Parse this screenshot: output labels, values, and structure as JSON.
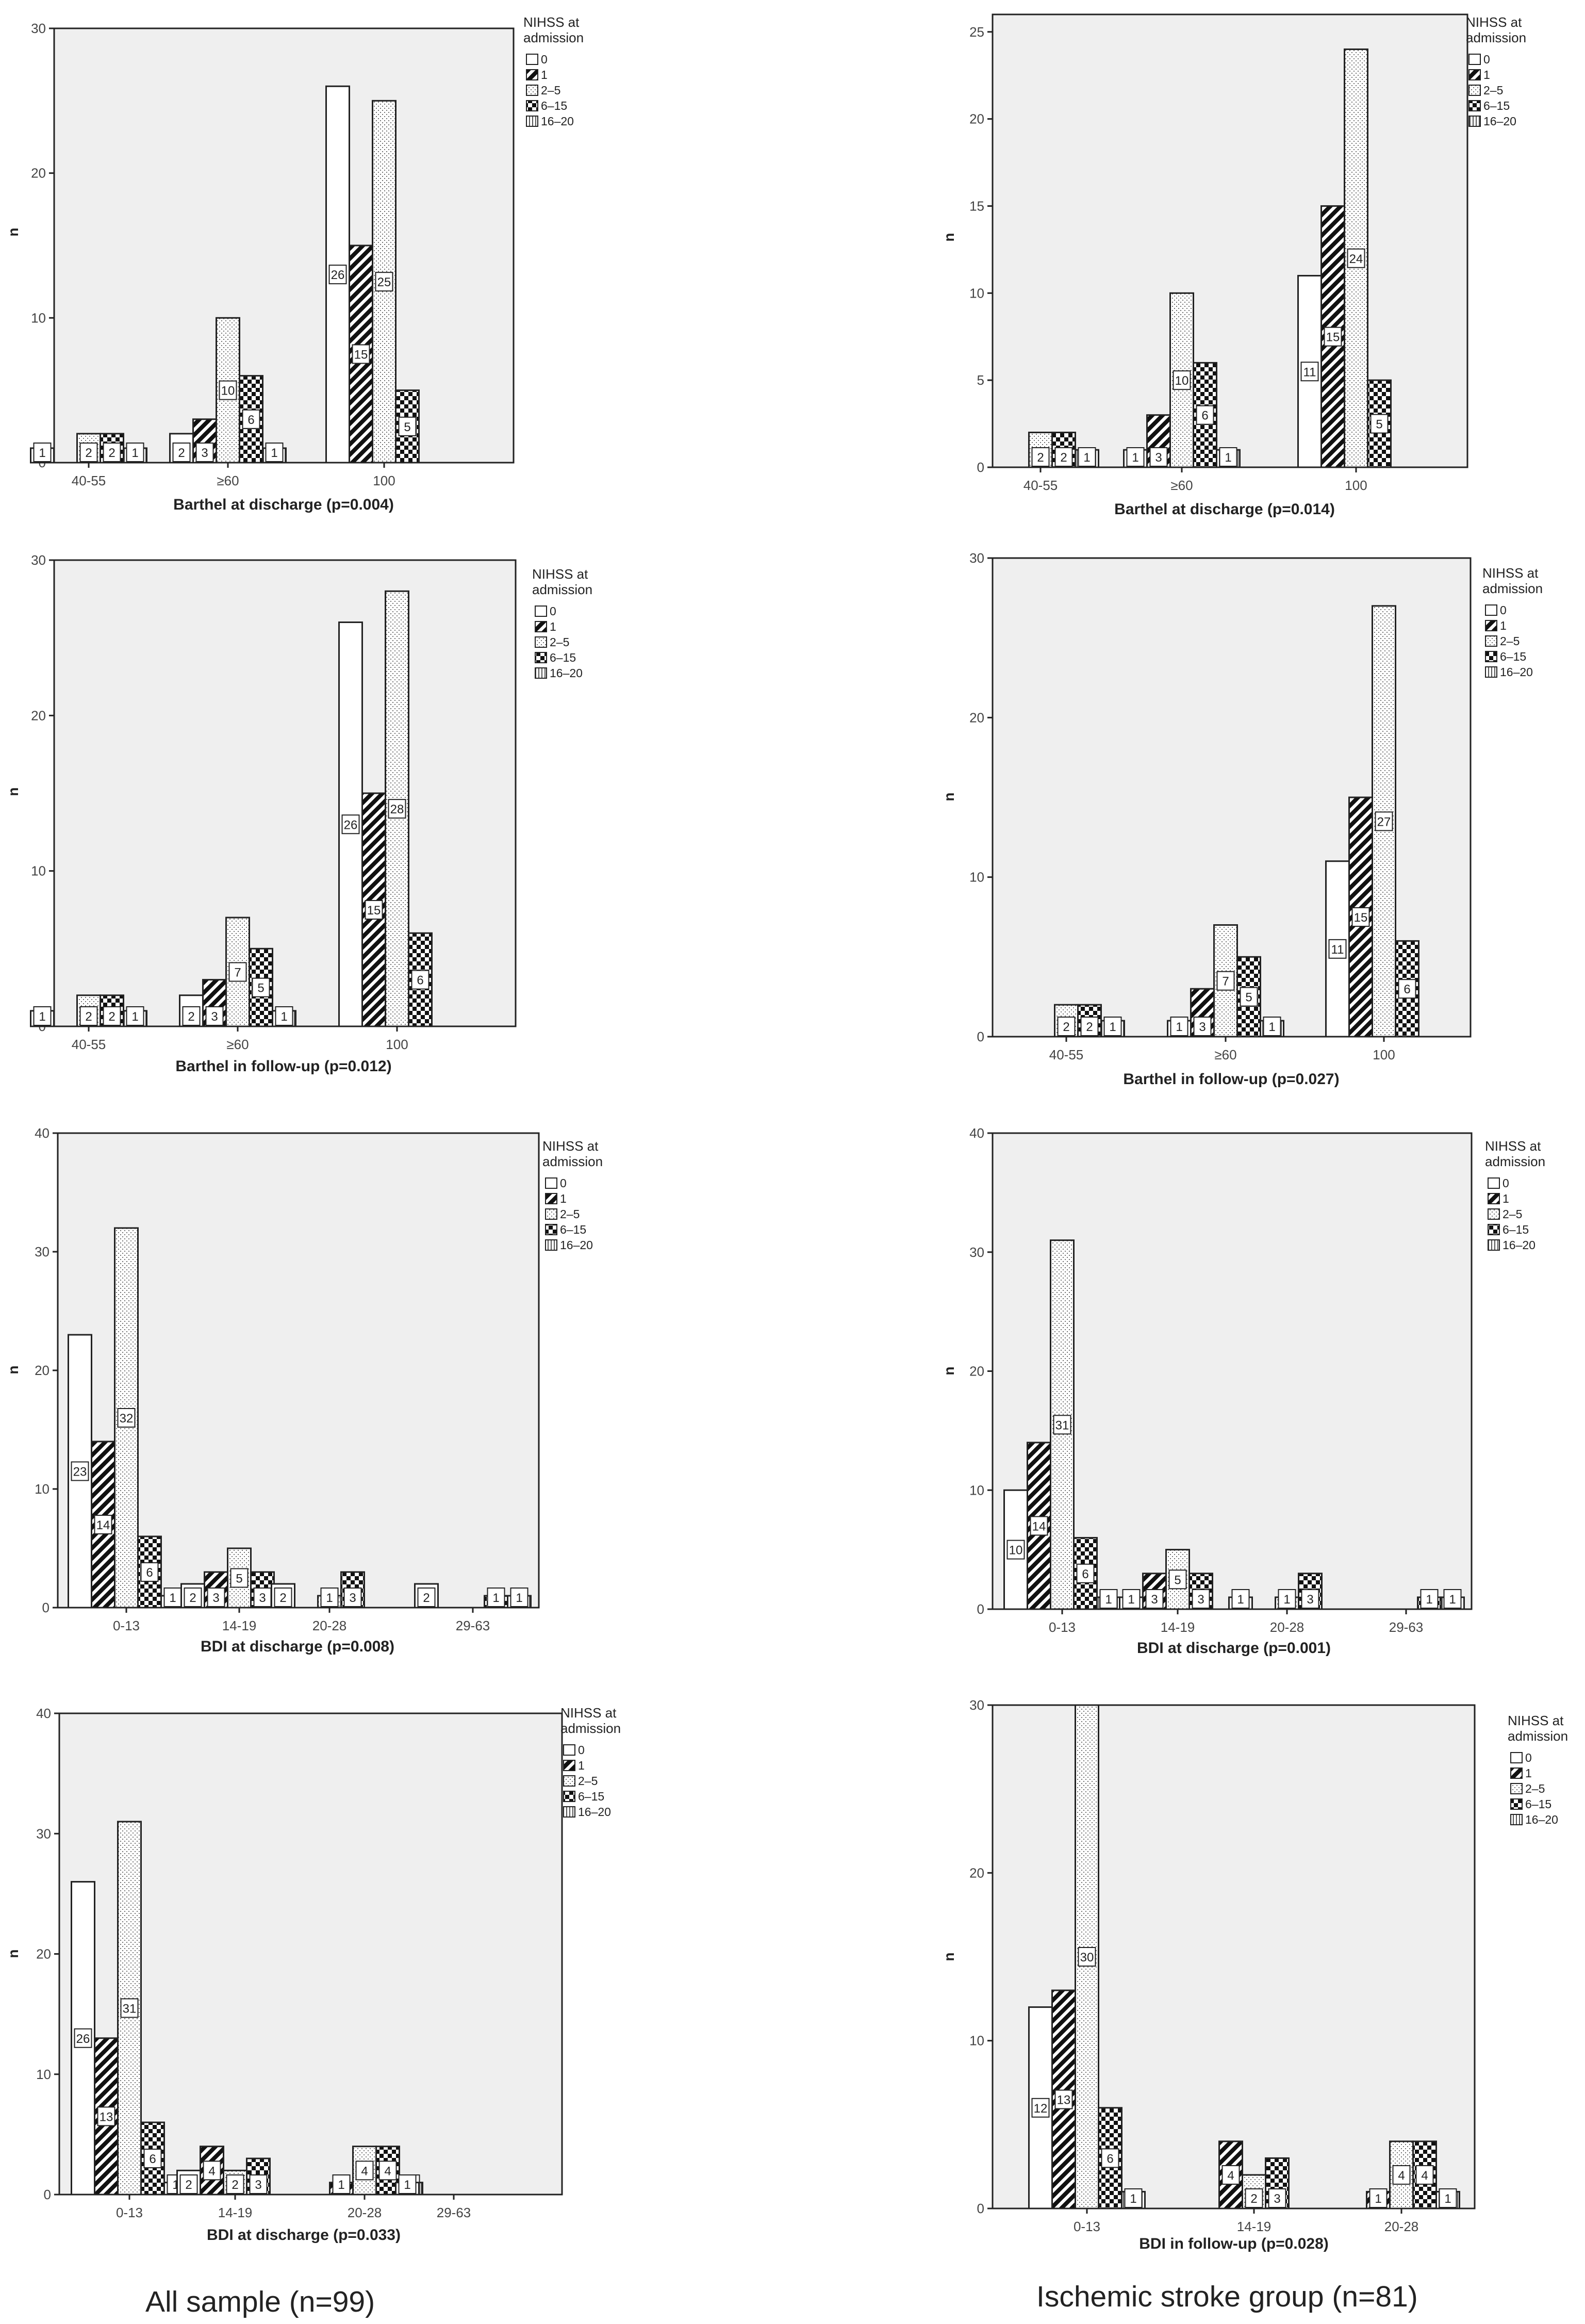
{
  "colors": {
    "plot_bg": "#efefef",
    "stroke": "#222222",
    "axis_text": "#444444"
  },
  "legend": {
    "title": "NIHSS at admission",
    "entries": [
      {
        "label": "0",
        "pattern": "solid-white"
      },
      {
        "label": "1",
        "pattern": "diagonal-black"
      },
      {
        "label": "2-5",
        "pattern": "dots"
      },
      {
        "label": "6-15",
        "pattern": "checker"
      },
      {
        "label": "16-20",
        "pattern": "vertical-lines"
      }
    ]
  },
  "captions": {
    "left": "All sample (n=99)",
    "right": "Ischemic stroke group (n=81)"
  },
  "chart_data": [
    {
      "id": "a1",
      "type": "bar",
      "title": "Barthel at discharge (p=0.004)",
      "xlabel": "Barthel at discharge (p=0.004)",
      "ylabel": "n",
      "ylim": [
        0,
        30
      ],
      "yticks": [
        0,
        10,
        20,
        30
      ],
      "categories": [
        "40-55",
        "≥60",
        "100"
      ],
      "series": [
        {
          "name": "0",
          "values": [
            1,
            2,
            26
          ]
        },
        {
          "name": "1",
          "values": [
            null,
            3,
            15
          ]
        },
        {
          "name": "2-5",
          "values": [
            2,
            10,
            25
          ]
        },
        {
          "name": "6-15",
          "values": [
            2,
            6,
            5
          ]
        },
        {
          "name": "16-20",
          "values": [
            1,
            1,
            null
          ]
        }
      ]
    },
    {
      "id": "b1",
      "type": "bar",
      "title": "Barthel at discharge (p=0.014)",
      "xlabel": "Barthel at discharge (p=0.014)",
      "ylabel": "n",
      "ylim": [
        0,
        26
      ],
      "yticks": [
        0,
        5,
        10,
        15,
        20,
        25
      ],
      "categories": [
        "40-55",
        "≥60",
        "100"
      ],
      "series": [
        {
          "name": "0",
          "values": [
            null,
            1,
            11
          ]
        },
        {
          "name": "1",
          "values": [
            null,
            3,
            15
          ]
        },
        {
          "name": "2-5",
          "values": [
            2,
            10,
            24
          ]
        },
        {
          "name": "6-15",
          "values": [
            2,
            6,
            5
          ]
        },
        {
          "name": "16-20",
          "values": [
            1,
            1,
            null
          ]
        }
      ]
    },
    {
      "id": "a2",
      "type": "bar",
      "title": "Barthel in follow-up (p=0.012)",
      "xlabel": "Barthel in follow-up (p=0.012)",
      "ylabel": "n",
      "ylim": [
        0,
        30
      ],
      "yticks": [
        0,
        10,
        20,
        30
      ],
      "categories": [
        "40-55",
        "≥60",
        "100"
      ],
      "series": [
        {
          "name": "0",
          "values": [
            1,
            2,
            26
          ]
        },
        {
          "name": "1",
          "values": [
            null,
            3,
            15
          ]
        },
        {
          "name": "2-5",
          "values": [
            2,
            7,
            28
          ]
        },
        {
          "name": "6-15",
          "values": [
            2,
            5,
            6
          ]
        },
        {
          "name": "16-20",
          "values": [
            1,
            1,
            null
          ]
        }
      ]
    },
    {
      "id": "b2",
      "type": "bar",
      "title": "Barthel in follow-up (p=0.027)",
      "xlabel": "Barthel in follow-up (p=0.027)",
      "ylabel": "n",
      "ylim": [
        0,
        30
      ],
      "yticks": [
        0,
        10,
        20,
        30
      ],
      "categories": [
        "40-55",
        "≥60",
        "100"
      ],
      "series": [
        {
          "name": "0",
          "values": [
            null,
            1,
            11
          ]
        },
        {
          "name": "1",
          "values": [
            null,
            3,
            15
          ]
        },
        {
          "name": "2-5",
          "values": [
            2,
            7,
            27
          ]
        },
        {
          "name": "6-15",
          "values": [
            2,
            5,
            6
          ]
        },
        {
          "name": "16-20",
          "values": [
            1,
            1,
            null
          ]
        }
      ]
    },
    {
      "id": "a3",
      "type": "bar",
      "title": "BDI at discharge (p=0.008)",
      "xlabel": "BDI at discharge (p=0.008)",
      "ylabel": "n",
      "ylim": [
        0,
        40
      ],
      "yticks": [
        0,
        10,
        20,
        30,
        40
      ],
      "categories": [
        "0-13",
        "14-19",
        "20-28",
        "29-63"
      ],
      "series": [
        {
          "name": "0",
          "values": [
            23,
            2,
            2,
            2
          ]
        },
        {
          "name": "1",
          "values": [
            14,
            3,
            null,
            null
          ]
        },
        {
          "name": "2-5",
          "values": [
            32,
            5,
            1,
            null
          ]
        },
        {
          "name": "6-15",
          "values": [
            6,
            3,
            3,
            1
          ]
        },
        {
          "name": "16-20",
          "values": [
            1,
            null,
            null,
            1
          ]
        }
      ]
    },
    {
      "id": "b3",
      "type": "bar",
      "title": "BDI at discharge (p=0.001)",
      "xlabel": "BDI at discharge (p=0.001)",
      "ylabel": "n",
      "ylim": [
        0,
        40
      ],
      "yticks": [
        0,
        10,
        20,
        30,
        40
      ],
      "categories": [
        "0-13",
        "14-19",
        "20-28",
        "29-63"
      ],
      "series": [
        {
          "name": "0",
          "values": [
            10,
            1,
            1,
            null
          ]
        },
        {
          "name": "1",
          "values": [
            14,
            3,
            null,
            null
          ]
        },
        {
          "name": "2-5",
          "values": [
            31,
            5,
            1,
            null
          ]
        },
        {
          "name": "6-15",
          "values": [
            6,
            3,
            3,
            1
          ]
        },
        {
          "name": "16-20",
          "values": [
            1,
            null,
            null,
            1
          ]
        }
      ]
    },
    {
      "id": "a4",
      "type": "bar",
      "title": "BDI at discharge (p=0.033)",
      "xlabel": "BDI at discharge (p=0.033)",
      "ylabel": "n",
      "ylim": [
        0,
        40
      ],
      "yticks": [
        0,
        10,
        20,
        30,
        40
      ],
      "categories": [
        "0-13",
        "14-19",
        "20-28",
        "29-63"
      ],
      "series": [
        {
          "name": "0",
          "values": [
            26,
            2,
            null,
            1
          ]
        },
        {
          "name": "1",
          "values": [
            13,
            4,
            1,
            null
          ]
        },
        {
          "name": "2-5",
          "values": [
            31,
            2,
            4,
            null
          ]
        },
        {
          "name": "6-15",
          "values": [
            6,
            3,
            4,
            null
          ]
        },
        {
          "name": "16-20",
          "values": [
            1,
            null,
            1,
            null
          ]
        }
      ]
    },
    {
      "id": "b4",
      "type": "bar",
      "title": "BDI in follow-up (p=0.028)",
      "xlabel": "BDI in follow-up (p=0.028)",
      "ylabel": "n",
      "ylim": [
        0,
        30
      ],
      "yticks": [
        0,
        10,
        20,
        30
      ],
      "categories": [
        "0-13",
        "14-19",
        "20-28"
      ],
      "series": [
        {
          "name": "0",
          "values": [
            12,
            null,
            null
          ]
        },
        {
          "name": "1",
          "values": [
            13,
            4,
            1
          ]
        },
        {
          "name": "2-5",
          "values": [
            30,
            2,
            4
          ]
        },
        {
          "name": "6-15",
          "values": [
            6,
            3,
            4
          ]
        },
        {
          "name": "16-20",
          "values": [
            1,
            null,
            1
          ]
        }
      ]
    }
  ]
}
